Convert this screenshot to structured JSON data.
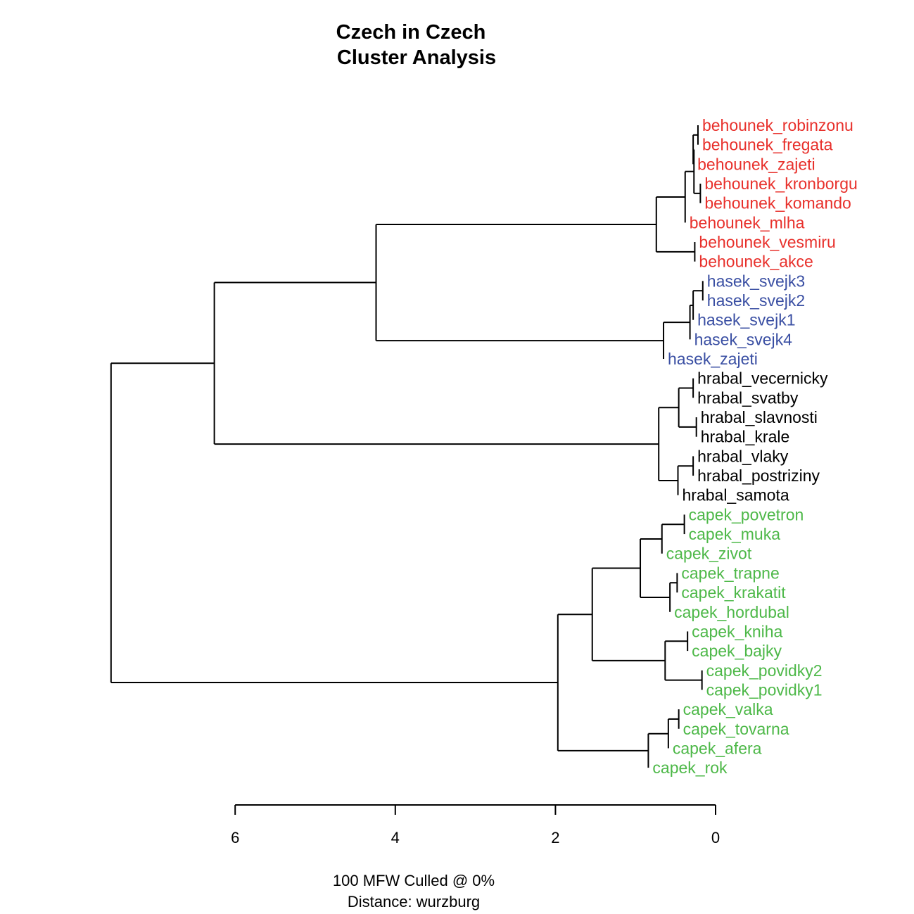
{
  "chart_data": {
    "type": "dendrogram",
    "title": [
      "Czech in Czech",
      "Cluster Analysis"
    ],
    "caption": [
      "100 MFW  Culled @ 0%",
      "Distance: wurzburg"
    ],
    "axis": {
      "ticks": [
        6,
        4,
        2,
        0
      ],
      "reversed": true
    },
    "group_colors": {
      "behounek": "#e8302b",
      "hasek": "#3a4fa3",
      "hrabal": "#000000",
      "capek": "#4db848"
    },
    "leaves": [
      {
        "name": "behounek_robinzonu",
        "group": "behounek"
      },
      {
        "name": "behounek_fregata",
        "group": "behounek"
      },
      {
        "name": "behounek_zajeti",
        "group": "behounek"
      },
      {
        "name": "behounek_kronborgu",
        "group": "behounek"
      },
      {
        "name": "behounek_komando",
        "group": "behounek"
      },
      {
        "name": "behounek_mlha",
        "group": "behounek"
      },
      {
        "name": "behounek_vesmiru",
        "group": "behounek"
      },
      {
        "name": "behounek_akce",
        "group": "behounek"
      },
      {
        "name": "hasek_svejk3",
        "group": "hasek"
      },
      {
        "name": "hasek_svejk2",
        "group": "hasek"
      },
      {
        "name": "hasek_svejk1",
        "group": "hasek"
      },
      {
        "name": "hasek_svejk4",
        "group": "hasek"
      },
      {
        "name": "hasek_zajeti",
        "group": "hasek"
      },
      {
        "name": "hrabal_vecernicky",
        "group": "hrabal"
      },
      {
        "name": "hrabal_svatby",
        "group": "hrabal"
      },
      {
        "name": "hrabal_slavnosti",
        "group": "hrabal"
      },
      {
        "name": "hrabal_krale",
        "group": "hrabal"
      },
      {
        "name": "hrabal_vlaky",
        "group": "hrabal"
      },
      {
        "name": "hrabal_postriziny",
        "group": "hrabal"
      },
      {
        "name": "hrabal_samota",
        "group": "hrabal"
      },
      {
        "name": "capek_povetron",
        "group": "capek"
      },
      {
        "name": "capek_muka",
        "group": "capek"
      },
      {
        "name": "capek_zivot",
        "group": "capek"
      },
      {
        "name": "capek_trapne",
        "group": "capek"
      },
      {
        "name": "capek_krakatit",
        "group": "capek"
      },
      {
        "name": "capek_hordubal",
        "group": "capek"
      },
      {
        "name": "capek_kniha",
        "group": "capek"
      },
      {
        "name": "capek_bajky",
        "group": "capek"
      },
      {
        "name": "capek_povidky2",
        "group": "capek"
      },
      {
        "name": "capek_povidky1",
        "group": "capek"
      },
      {
        "name": "capek_valka",
        "group": "capek"
      },
      {
        "name": "capek_tovarna",
        "group": "capek"
      },
      {
        "name": "capek_afera",
        "group": "capek"
      },
      {
        "name": "capek_rok",
        "group": "capek"
      }
    ],
    "tree": {
      "h": 7.55,
      "children": [
        {
          "h": 6.26,
          "children": [
            {
              "h": 4.24,
              "children": [
                {
                  "h": 0.74,
                  "children": [
                    {
                      "h": 0.38,
                      "children": [
                        {
                          "h": 0.27,
                          "children": [
                            {
                              "h": 0.28,
                              "children": [
                                {
                                  "h": 0.22,
                                  "children": [
                                    {
                                      "leaf": 0,
                                      "h": 0.22
                                    },
                                    {
                                      "leaf": 1,
                                      "h": 0.22
                                    }
                                  ]
                                },
                                {
                                  "leaf": 2,
                                  "h": 0.28
                                }
                              ]
                            },
                            {
                              "h": 0.19,
                              "children": [
                                {
                                  "leaf": 3,
                                  "h": 0.19
                                },
                                {
                                  "leaf": 4,
                                  "h": 0.19
                                }
                              ]
                            }
                          ]
                        },
                        {
                          "leaf": 5,
                          "h": 0.38
                        }
                      ]
                    },
                    {
                      "h": 0.26,
                      "children": [
                        {
                          "leaf": 6,
                          "h": 0.26
                        },
                        {
                          "leaf": 7,
                          "h": 0.26
                        }
                      ]
                    }
                  ]
                },
                {
                  "h": 0.65,
                  "children": [
                    {
                      "h": 0.32,
                      "children": [
                        {
                          "h": 0.28,
                          "children": [
                            {
                              "h": 0.16,
                              "children": [
                                {
                                  "leaf": 8,
                                  "h": 0.16
                                },
                                {
                                  "leaf": 9,
                                  "h": 0.16
                                }
                              ]
                            },
                            {
                              "leaf": 10,
                              "h": 0.28
                            }
                          ]
                        },
                        {
                          "leaf": 11,
                          "h": 0.32
                        }
                      ]
                    },
                    {
                      "leaf": 12,
                      "h": 0.65
                    }
                  ]
                }
              ]
            },
            {
              "h": 0.71,
              "children": [
                {
                  "h": 0.46,
                  "children": [
                    {
                      "h": 0.28,
                      "children": [
                        {
                          "leaf": 13,
                          "h": 0.28
                        },
                        {
                          "leaf": 14,
                          "h": 0.28
                        }
                      ]
                    },
                    {
                      "h": 0.24,
                      "children": [
                        {
                          "leaf": 15,
                          "h": 0.24
                        },
                        {
                          "leaf": 16,
                          "h": 0.24
                        }
                      ]
                    }
                  ]
                },
                {
                  "h": 0.47,
                  "children": [
                    {
                      "h": 0.28,
                      "children": [
                        {
                          "leaf": 17,
                          "h": 0.28
                        },
                        {
                          "leaf": 18,
                          "h": 0.28
                        }
                      ]
                    },
                    {
                      "leaf": 19,
                      "h": 0.47
                    }
                  ]
                }
              ]
            }
          ]
        },
        {
          "h": 1.97,
          "children": [
            {
              "h": 1.54,
              "children": [
                {
                  "h": 0.94,
                  "children": [
                    {
                      "h": 0.67,
                      "children": [
                        {
                          "h": 0.39,
                          "children": [
                            {
                              "leaf": 20,
                              "h": 0.39
                            },
                            {
                              "leaf": 21,
                              "h": 0.39
                            }
                          ]
                        },
                        {
                          "leaf": 22,
                          "h": 0.67
                        }
                      ]
                    },
                    {
                      "h": 0.57,
                      "children": [
                        {
                          "h": 0.48,
                          "children": [
                            {
                              "leaf": 23,
                              "h": 0.48
                            },
                            {
                              "leaf": 24,
                              "h": 0.48
                            }
                          ]
                        },
                        {
                          "leaf": 25,
                          "h": 0.57
                        }
                      ]
                    }
                  ]
                },
                {
                  "h": 0.63,
                  "children": [
                    {
                      "h": 0.35,
                      "children": [
                        {
                          "leaf": 26,
                          "h": 0.35
                        },
                        {
                          "leaf": 27,
                          "h": 0.35
                        }
                      ]
                    },
                    {
                      "h": 0.17,
                      "children": [
                        {
                          "leaf": 28,
                          "h": 0.17
                        },
                        {
                          "leaf": 29,
                          "h": 0.17
                        }
                      ]
                    }
                  ]
                }
              ]
            },
            {
              "h": 0.84,
              "children": [
                {
                  "h": 0.59,
                  "children": [
                    {
                      "h": 0.46,
                      "children": [
                        {
                          "leaf": 30,
                          "h": 0.46
                        },
                        {
                          "leaf": 31,
                          "h": 0.46
                        }
                      ]
                    },
                    {
                      "leaf": 32,
                      "h": 0.59
                    }
                  ]
                },
                {
                  "leaf": 33,
                  "h": 0.84
                }
              ]
            }
          ]
        }
      ]
    }
  }
}
